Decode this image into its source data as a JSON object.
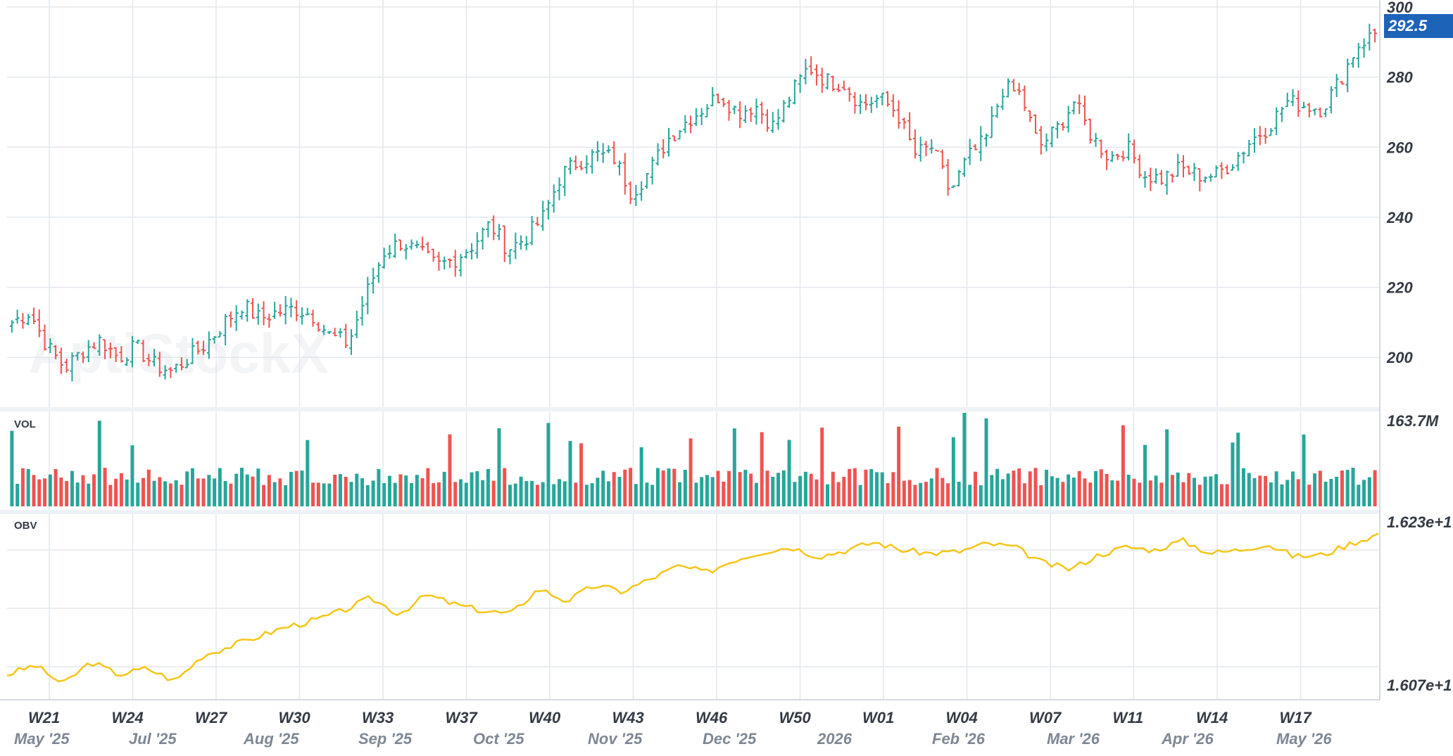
{
  "chart_data": {
    "type": "ohlc",
    "watermark": "AptiStockX",
    "last_price": "292.5",
    "price_axis": {
      "ticks": [
        "200",
        "220",
        "240",
        "260",
        "280",
        "300"
      ],
      "ylim": [
        188,
        300
      ]
    },
    "volume": {
      "label": "VOL",
      "max_label": "163.7M"
    },
    "obv": {
      "label": "OBV",
      "top_label": "1.623e+1",
      "bottom_label": "1.607e+1"
    },
    "weeks": [
      "W21",
      "W24",
      "W27",
      "W30",
      "W33",
      "W37",
      "W40",
      "W43",
      "W46",
      "W50",
      "W01",
      "W04",
      "W07",
      "W11",
      "W14",
      "W17"
    ],
    "months": [
      "May '25",
      "Jul '25",
      "Aug '25",
      "Sep '25",
      "Oct '25",
      "Nov '25",
      "Dec '25",
      "2026",
      "Feb '26",
      "Mar '26",
      "Apr '26",
      "May '26"
    ],
    "close_path": [
      210,
      213,
      203,
      197,
      202,
      205,
      200,
      203,
      198,
      196,
      200,
      204,
      210,
      215,
      211,
      213,
      214,
      212,
      206,
      204,
      218,
      230,
      233,
      230,
      226,
      228,
      232,
      238,
      231,
      234,
      240,
      252,
      256,
      258,
      257,
      247,
      253,
      262,
      267,
      271,
      275,
      270,
      272,
      266,
      275,
      283,
      279,
      278,
      272,
      274,
      270,
      258,
      260,
      247,
      257,
      262,
      277,
      275,
      260,
      265,
      273,
      263,
      257,
      260,
      252,
      251,
      254,
      252,
      252,
      256,
      262,
      266,
      273,
      272,
      271,
      279,
      289,
      292.5
    ],
    "ohlc_colors": {
      "up": "#26a69a",
      "down": "#ef5350"
    },
    "obv_color": "#f5c518",
    "obv_path": [
      0.1,
      0.16,
      0.04,
      0.18,
      0.1,
      0.14,
      0.06,
      0.22,
      0.28,
      0.34,
      0.4,
      0.44,
      0.5,
      0.58,
      0.48,
      0.6,
      0.54,
      0.5,
      0.48,
      0.64,
      0.56,
      0.66,
      0.62,
      0.7,
      0.78,
      0.74,
      0.82,
      0.87,
      0.9,
      0.84,
      0.88,
      0.93,
      0.88,
      0.86,
      0.87,
      0.92,
      0.9,
      0.8,
      0.76,
      0.85,
      0.9,
      0.88,
      0.94,
      0.86,
      0.88,
      0.92,
      0.84,
      0.85,
      0.92,
      0.98
    ]
  }
}
